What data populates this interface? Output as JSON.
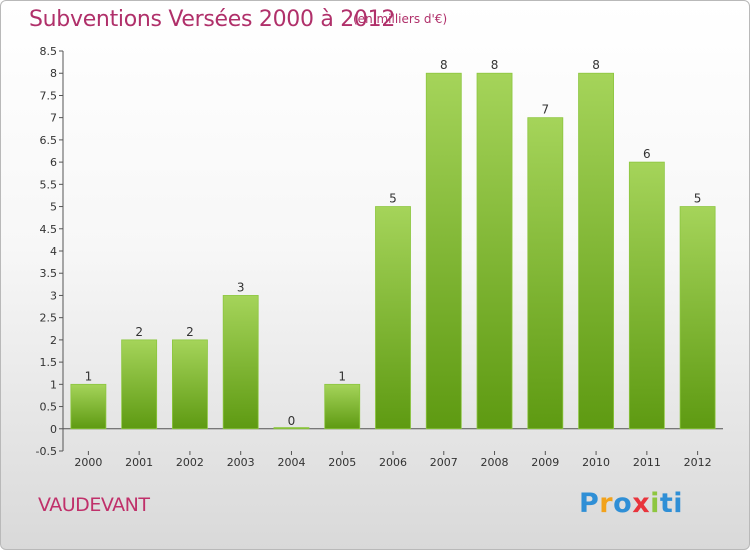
{
  "header": {
    "title": "Subventions Versées 2000 à 2012",
    "subtitle": "(en milliers d'€)"
  },
  "footer": {
    "commune": "VAUDEVANT",
    "logo": [
      "P",
      "r",
      "o",
      "x",
      "i",
      "ti"
    ]
  },
  "colors": {
    "bar_top": "#a5d45a",
    "bar_bottom": "#5e9a12",
    "title": "#b0306a"
  },
  "chart_data": {
    "type": "bar",
    "categories": [
      "2000",
      "2001",
      "2002",
      "2003",
      "2004",
      "2005",
      "2006",
      "2007",
      "2008",
      "2009",
      "2010",
      "2011",
      "2012"
    ],
    "values": [
      1,
      2,
      2,
      3,
      0,
      1,
      5,
      8,
      8,
      7,
      8,
      6,
      5
    ],
    "data_labels": [
      "1",
      "2",
      "2",
      "3",
      "0",
      "1",
      "5",
      "8",
      "8",
      "7",
      "8",
      "6",
      "5"
    ],
    "yticks": [
      "-0.5",
      "0",
      "0.5",
      "1",
      "1.5",
      "2",
      "2.5",
      "3",
      "3.5",
      "4",
      "4.5",
      "5",
      "5.5",
      "6",
      "6.5",
      "7",
      "7.5",
      "8",
      "8.5"
    ],
    "ylim": [
      -0.5,
      8.5
    ],
    "grid": false
  }
}
